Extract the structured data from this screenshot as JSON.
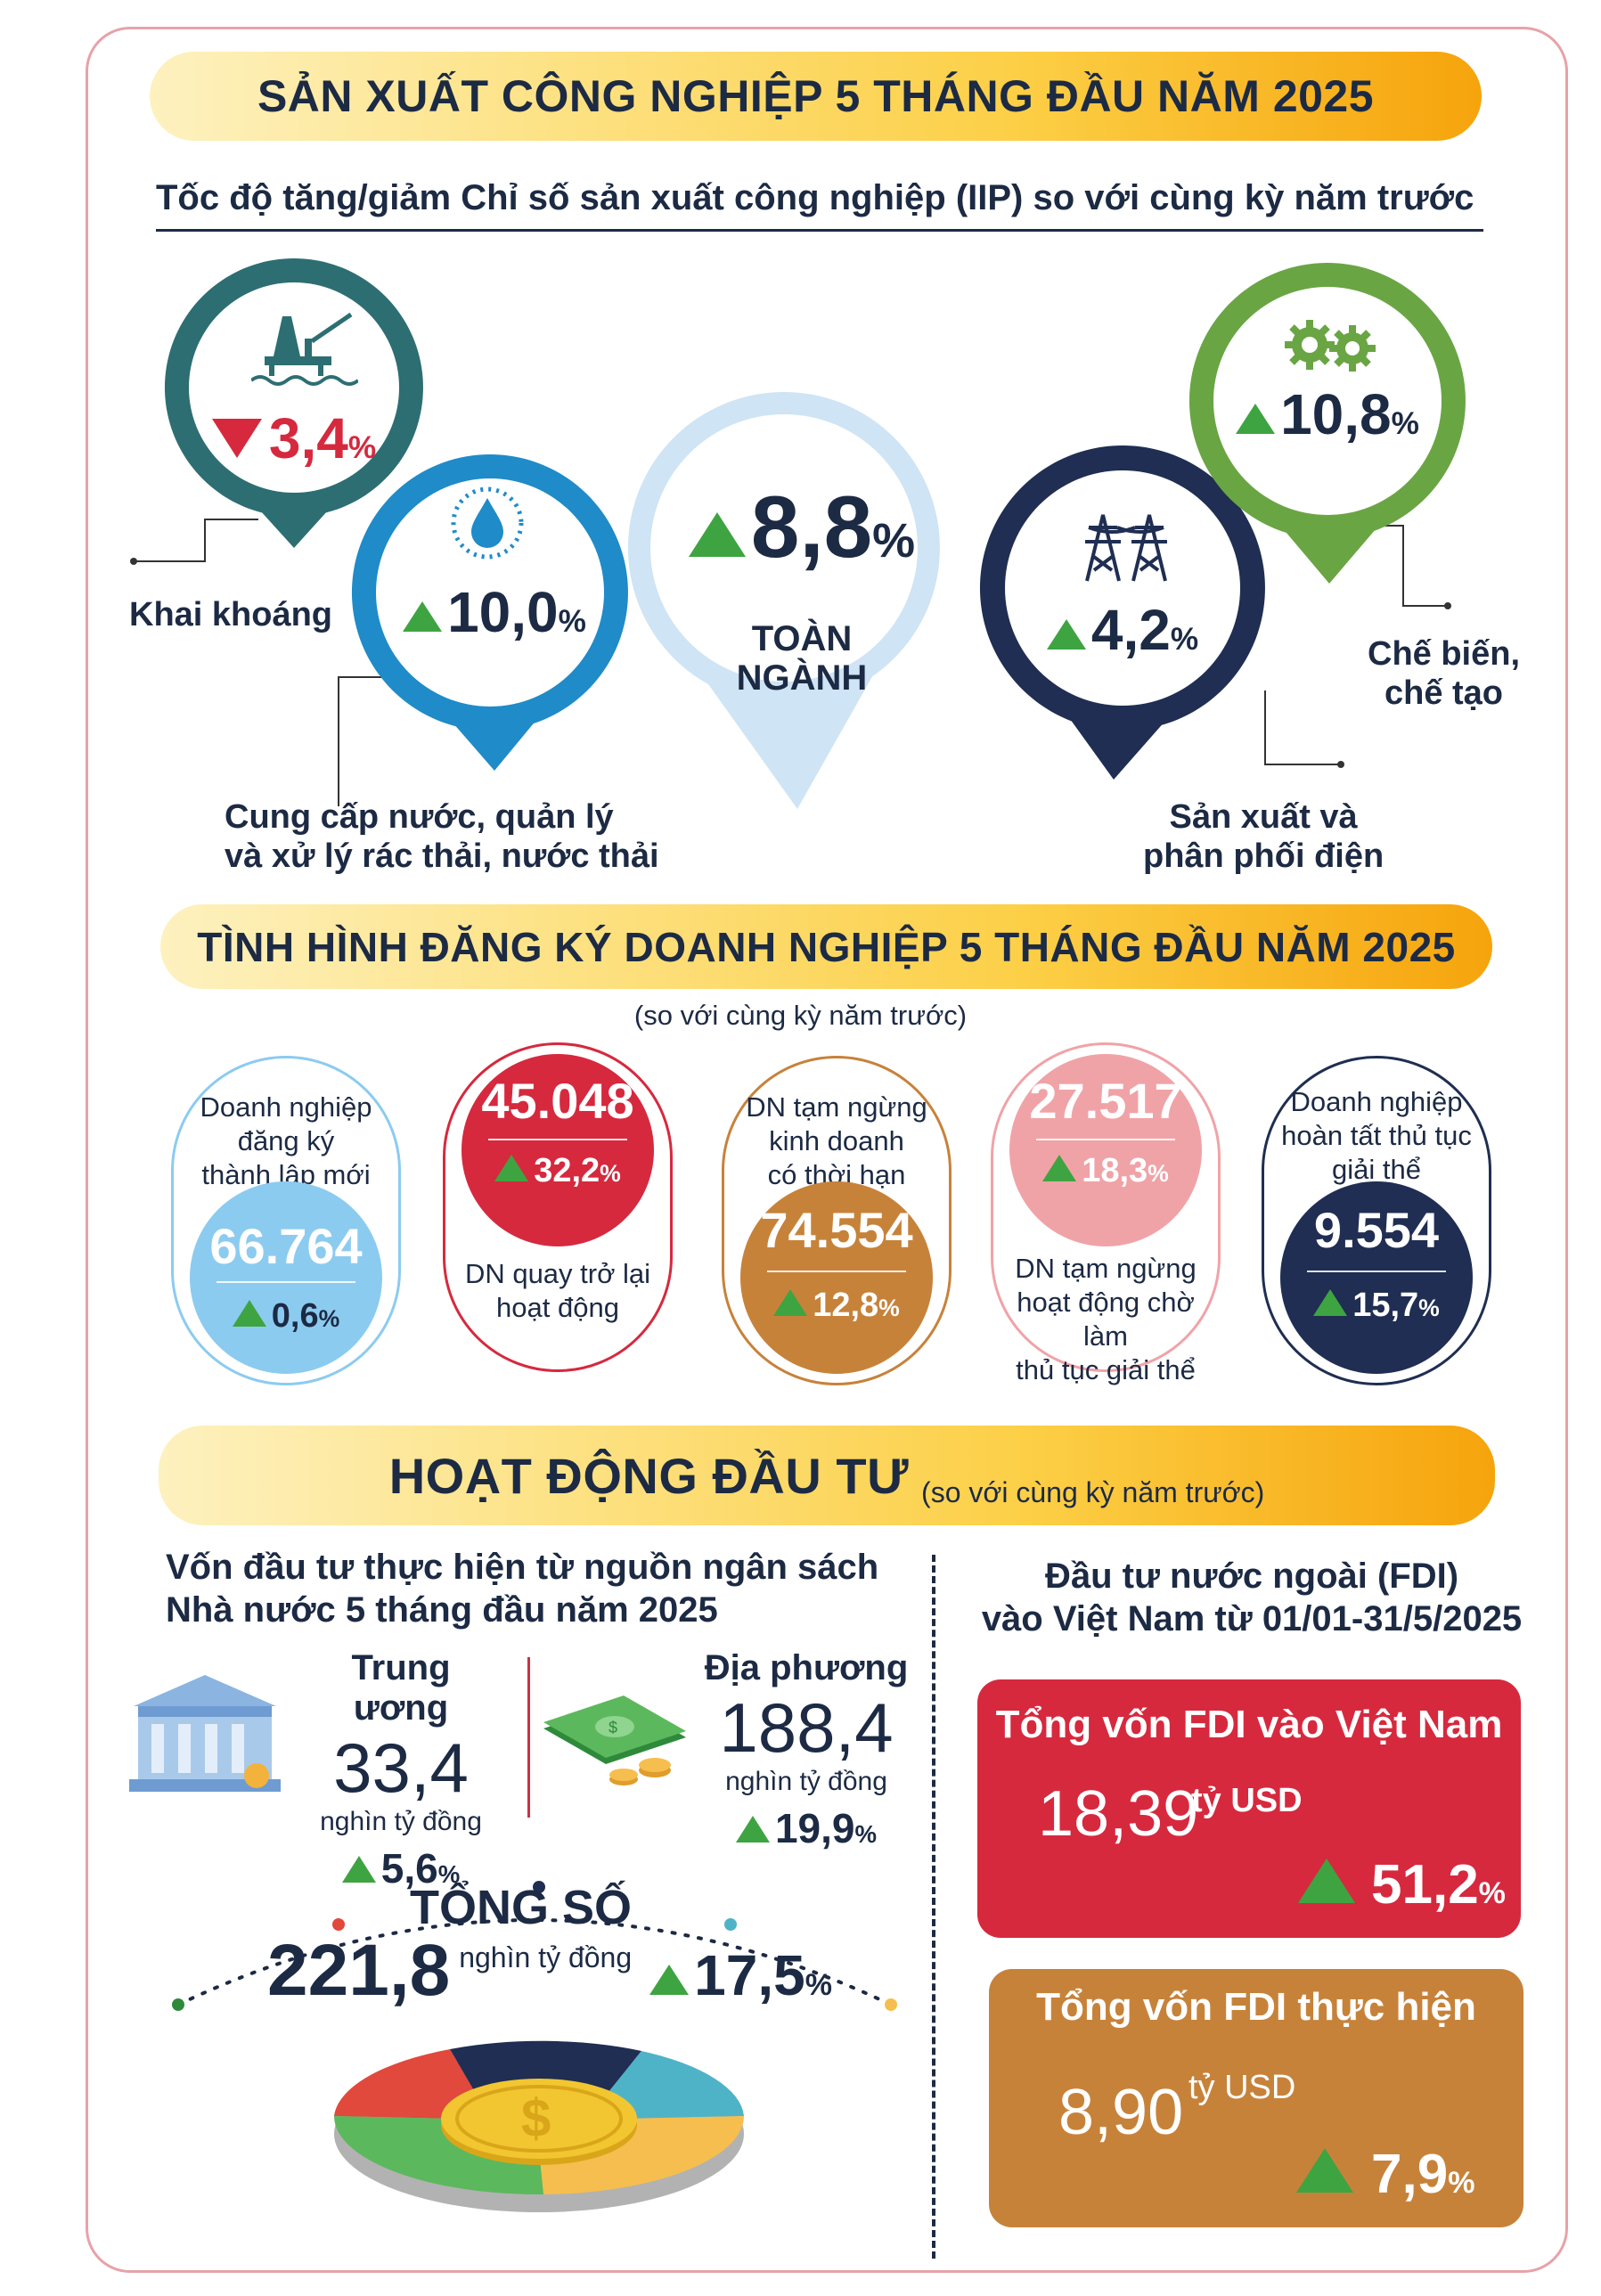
{
  "colors": {
    "teal": "#2d6e73",
    "blue": "#1f8bc8",
    "light": "#cfe4f4",
    "navy": "#1f2e52",
    "green": "#6aa544",
    "red": "#d6293e",
    "brown": "#c7823a",
    "pink": "#f0a3a7",
    "sky": "#8ccbf0",
    "up": "#3ea441"
  },
  "section1": {
    "title": "SẢN XUẤT CÔNG NGHIỆP 5 THÁNG ĐẦU NĂM 2025",
    "subtitle": "Tốc độ tăng/giảm Chỉ số sản xuất công nghiệp (IIP) so với cùng kỳ năm trước",
    "items": [
      {
        "value": "3,4",
        "unit": "%",
        "direction": "down",
        "label": "Khai khoáng",
        "icon": "oil-rig-icon"
      },
      {
        "value": "10,0",
        "unit": "%",
        "direction": "up",
        "label": "Cung cấp nước, quản lý và xử lý rác thải, nước thải",
        "label_line1": "Cung cấp nước, quản lý",
        "label_line2": "và xử lý rác thải, nước thải",
        "icon": "water-drop-icon"
      },
      {
        "value": "8,8",
        "unit": "%",
        "direction": "up",
        "label": "TOÀN NGÀNH"
      },
      {
        "value": "4,2",
        "unit": "%",
        "direction": "up",
        "label": "Sản xuất và phân phối điện",
        "label_line1": "Sản xuất và",
        "label_line2": "phân phối điện",
        "icon": "power-tower-icon"
      },
      {
        "value": "10,8",
        "unit": "%",
        "direction": "up",
        "label": "Chế biến, chế tạo",
        "label_line1": "Chế biến,",
        "label_line2": "chế tạo",
        "icon": "gears-icon"
      }
    ]
  },
  "section2": {
    "title": "TÌNH HÌNH ĐĂNG KÝ DOANH NGHIỆP 5 THÁNG ĐẦU NĂM 2025",
    "note": "(so với cùng kỳ năm trước)",
    "cards": [
      {
        "text": [
          "Doanh nghiệp",
          "đăng ký",
          "thành lập mới"
        ],
        "value": "66.764",
        "change": "0,6",
        "unit": "%"
      },
      {
        "text": [
          "DN quay trở lại",
          "hoạt động"
        ],
        "value": "45.048",
        "change": "32,2",
        "unit": "%"
      },
      {
        "text": [
          "DN tạm ngừng",
          "kinh doanh",
          "có thời hạn"
        ],
        "value": "74.554",
        "change": "12,8",
        "unit": "%"
      },
      {
        "text": [
          "DN tạm ngừng",
          "hoạt động chờ làm",
          "thủ tục giải thể"
        ],
        "value": "27.517",
        "change": "18,3",
        "unit": "%"
      },
      {
        "text": [
          "Doanh nghiệp",
          "hoàn tất thủ tục",
          "giải thể"
        ],
        "value": "9.554",
        "change": "15,7",
        "unit": "%"
      }
    ]
  },
  "section3": {
    "title": "HOẠT ĐỘNG ĐẦU TƯ",
    "note": "(so với cùng kỳ năm trước)",
    "budget": {
      "title_line1": "Vốn đầu tư thực hiện từ nguồn ngân sách",
      "title_line2": "Nhà nước 5 tháng đầu năm 2025",
      "central": {
        "label": "Trung ương",
        "value": "33,4",
        "unit": "nghìn tỷ đồng",
        "change": "5,6",
        "pct": "%",
        "icon": "bank-building-icon"
      },
      "local": {
        "label": "Địa phương",
        "value": "188,4",
        "unit": "nghìn tỷ đồng",
        "change": "19,9",
        "pct": "%",
        "icon": "money-stack-icon"
      },
      "total": {
        "label": "TỔNG SỐ",
        "value": "221,8",
        "unit": "nghìn tỷ đồng",
        "change": "17,5",
        "pct": "%",
        "icon": "coin-dollar-icon"
      }
    },
    "fdi": {
      "title_line1": "Đầu tư nước ngoài (FDI)",
      "title_line2": "vào Việt Nam từ 01/01-31/5/2025",
      "registered": {
        "label": "Tổng vốn FDI vào Việt Nam",
        "value": "18,39",
        "unit": "tỷ USD",
        "change": "51,2",
        "pct": "%"
      },
      "disbursed": {
        "label": "Tổng vốn FDI thực hiện",
        "value": "8,90",
        "unit": "tỷ USD",
        "change": "7,9",
        "pct": "%"
      }
    }
  }
}
